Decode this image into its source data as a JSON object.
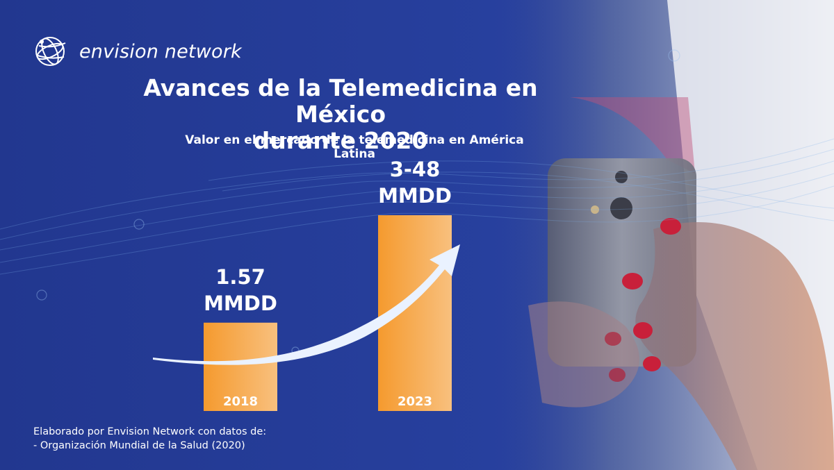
{
  "brand": {
    "name": "envision network",
    "logo_icon": "globe-icon"
  },
  "colors": {
    "background": "#243a9a",
    "bar_start": "#f59a2e",
    "bar_end": "#f8c07e",
    "arrow": "#eaf2ff"
  },
  "chart_data": {
    "type": "bar",
    "title": "Avances de la Telemedicina en México durante 2020",
    "title_lines": [
      "Avances de la Telemedicina en México",
      "durante 2020"
    ],
    "subtitle": "Valor en el mercado de la telemedicina en América Latina",
    "categories": [
      "2018",
      "2023"
    ],
    "values": [
      1.57,
      3.48
    ],
    "value_labels": [
      {
        "line1": "1.57",
        "line2": "MMDD"
      },
      {
        "line1": "3-48",
        "line2": "MMDD"
      }
    ],
    "unit": "MMDD",
    "trend_arrow": true,
    "grid": false
  },
  "footer": {
    "line1": "Elaborado por Envision Network con datos de:",
    "line2": "- Organización Mundial de la Salud (2020)"
  }
}
